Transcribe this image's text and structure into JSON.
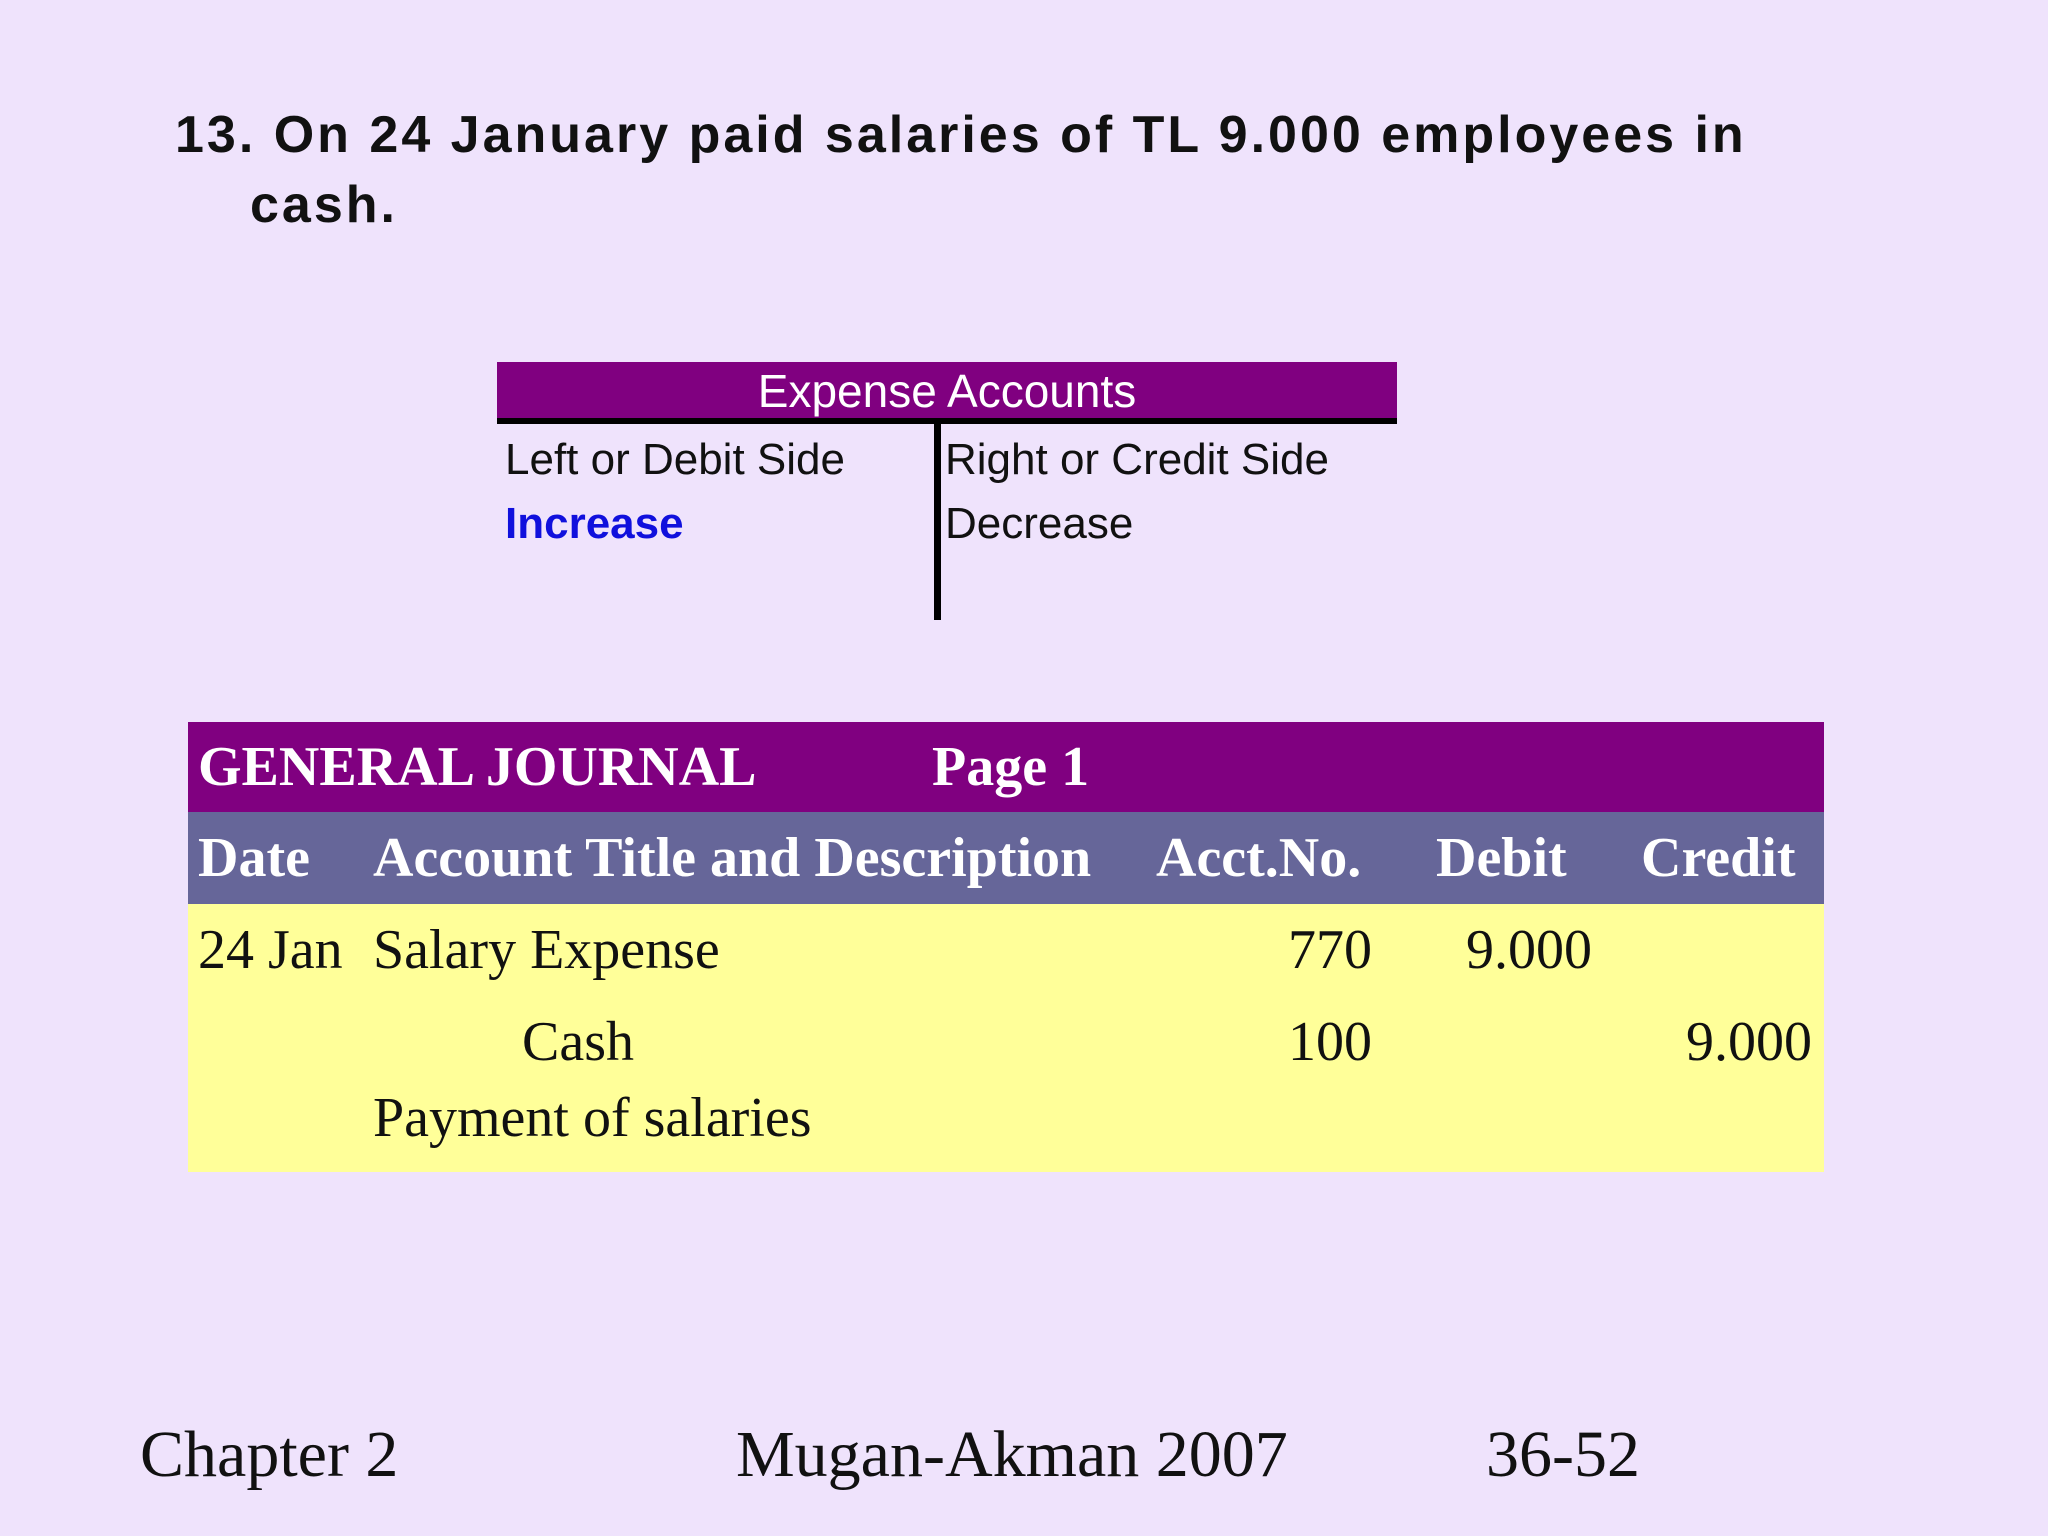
{
  "heading": {
    "line1": "13. On 24 January paid salaries of TL 9.000 employees in",
    "line2": "cash."
  },
  "t_account": {
    "title": "Expense Accounts",
    "left_header": "Left or Debit Side",
    "right_header": "Right or Credit Side",
    "left_value": "Increase",
    "right_value": "Decrease"
  },
  "journal": {
    "title": "GENERAL JOURNAL",
    "page_label": "Page  1",
    "columns": {
      "date": "Date",
      "description": "Account Title and Description",
      "acct_no": "Acct.No.",
      "debit": "Debit",
      "credit": "Credit"
    },
    "rows": [
      {
        "date": "24 Jan",
        "description": "Salary Expense",
        "acct_no": "770",
        "debit": "9.000",
        "credit": ""
      },
      {
        "date": "",
        "description": "Cash",
        "acct_no": "100",
        "debit": "",
        "credit": "9.000"
      },
      {
        "date": "",
        "description": "Payment of salaries",
        "acct_no": "",
        "debit": "",
        "credit": ""
      }
    ]
  },
  "footer": {
    "left": "Chapter 2",
    "center": "Mugan-Akman 2007",
    "right": "36-52"
  },
  "colors": {
    "background": "#efe3fc",
    "title_bar": "#800080",
    "header_bar": "#666699",
    "body_fill": "#ffff99",
    "increase_text": "#1010dd"
  }
}
